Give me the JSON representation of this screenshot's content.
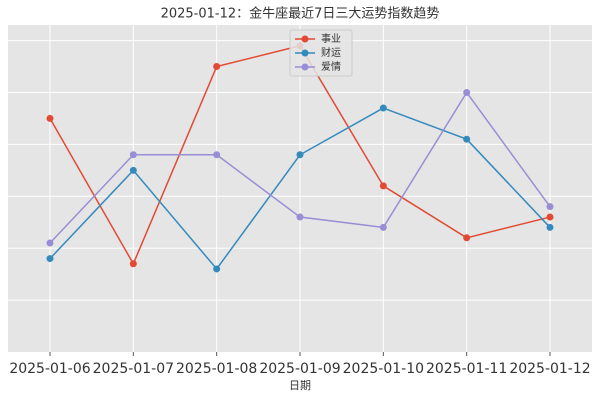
{
  "chart_data": {
    "type": "line",
    "title": "2025-01-12：金牛座最近7日三大运势指数趋势",
    "x_label": "日期",
    "categories": [
      "2025-01-06",
      "2025-01-07",
      "2025-01-08",
      "2025-01-09",
      "2025-01-10",
      "2025-01-11",
      "2025-01-12"
    ],
    "series": [
      {
        "name": "事业",
        "color": "#E24A33",
        "values": [
          85,
          57,
          95,
          99,
          72,
          62,
          66
        ]
      },
      {
        "name": "财运",
        "color": "#348ABD",
        "values": [
          58,
          75,
          56,
          78,
          87,
          81,
          64
        ]
      },
      {
        "name": "爱情",
        "color": "#988ED5",
        "values": [
          61,
          78,
          78,
          66,
          64,
          90,
          68
        ]
      }
    ],
    "ylim": [
      40,
      103
    ],
    "yticks": [
      50,
      60,
      70,
      80,
      90,
      100
    ],
    "grid": true,
    "legend": "top"
  }
}
